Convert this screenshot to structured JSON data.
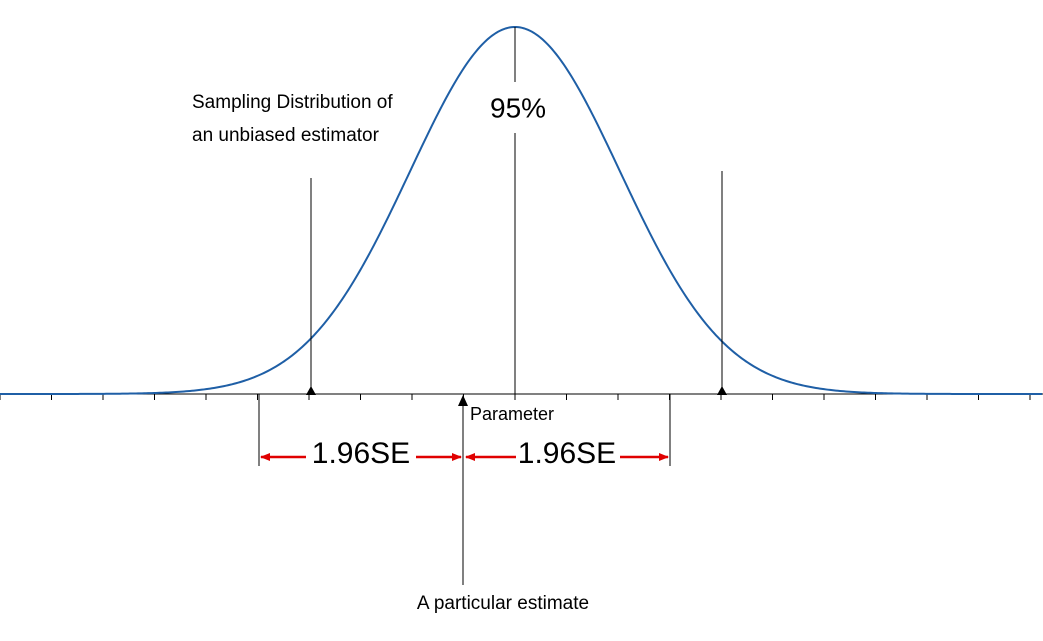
{
  "labels": {
    "distribution": [
      "Sampling Distribution of",
      "an unbiased estimator"
    ],
    "coverage": "95%",
    "parameter": "Parameter",
    "margin_left": "1.96SE",
    "margin_right": "1.96SE",
    "estimate": "A particular estimate"
  }
}
